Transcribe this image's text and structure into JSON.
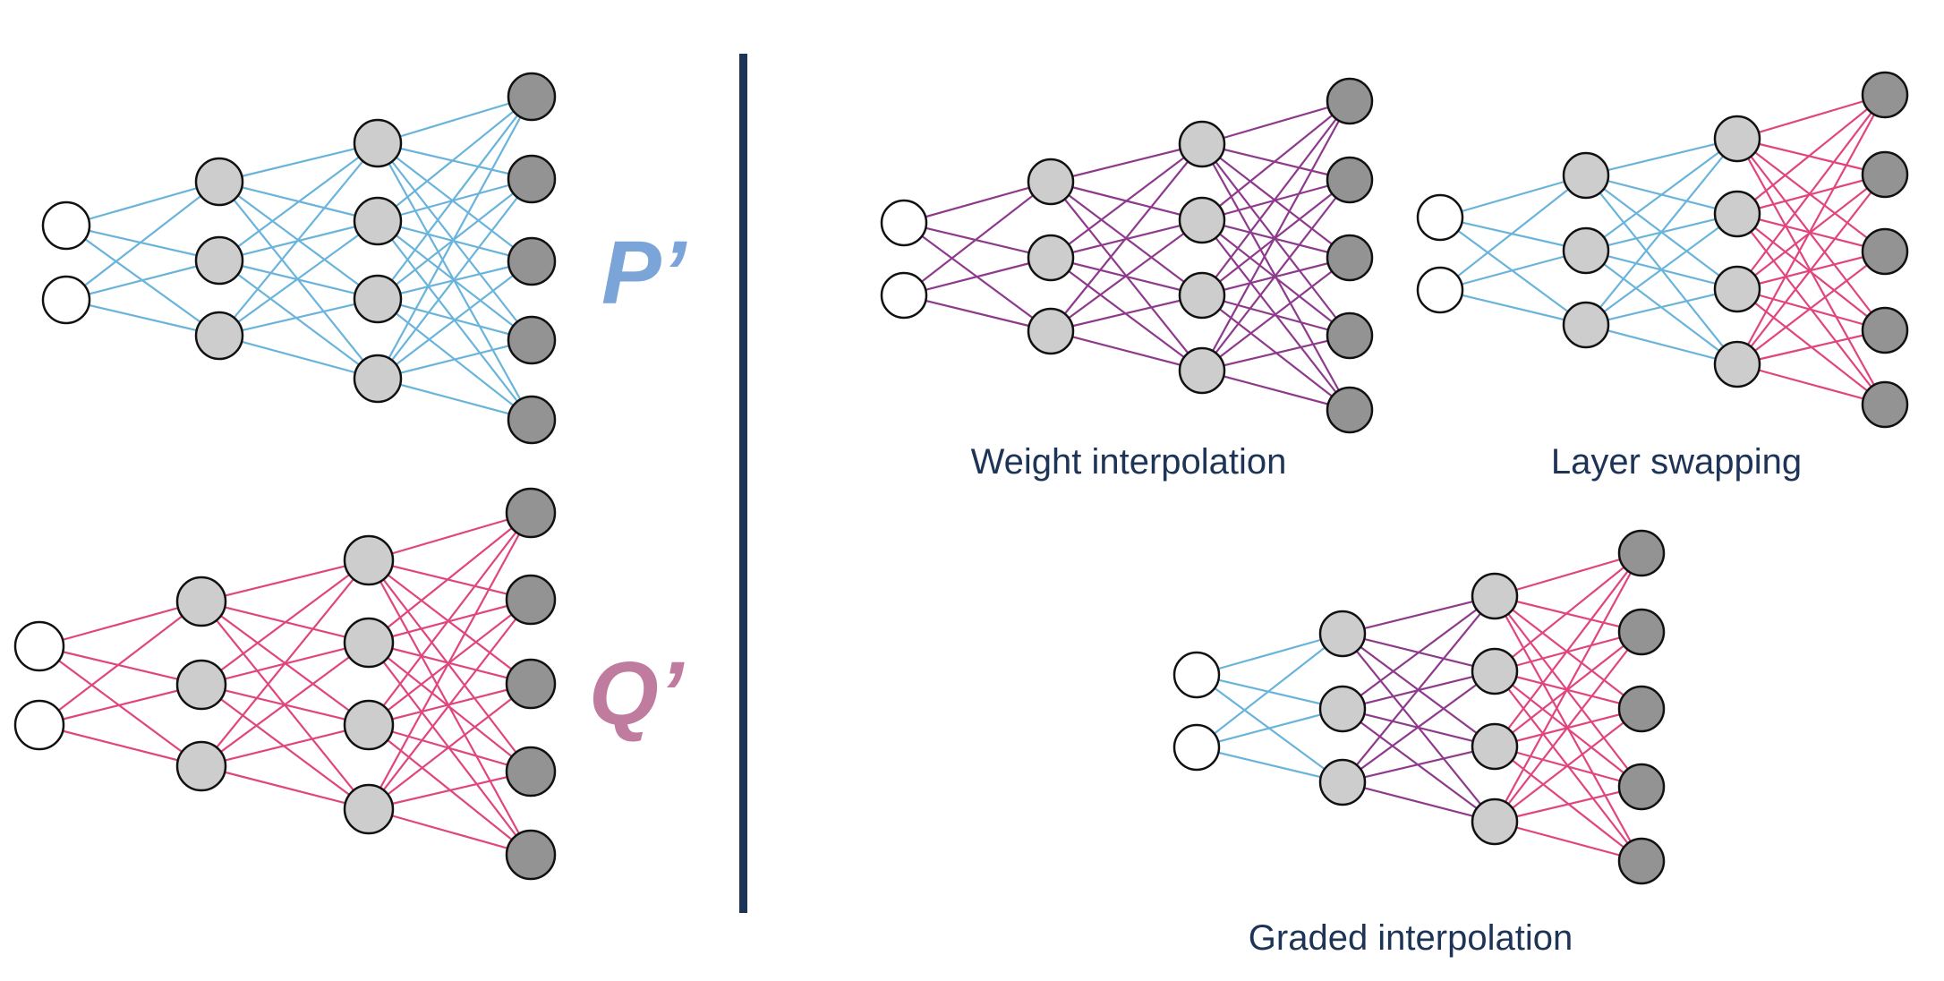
{
  "labels": {
    "p": "P’",
    "q": "Q’"
  },
  "captions": {
    "weight": "Weight interpolation",
    "layer": "Layer swapping",
    "graded": "Graded interpolation"
  },
  "colors": {
    "p_edges": "#6ab4dc",
    "q_edges": "#e0457e",
    "mixed_edges": "#8e3a8c",
    "p_label": "#7ba4d8",
    "q_label": "#c07c9f",
    "caption_text": "#1e3456",
    "divider": "#1e3456",
    "input_node_fill": "#ffffff",
    "hidden_node_fill": "#cdcdcd",
    "output_node_fill": "#939393",
    "node_stroke": "#111111"
  },
  "network": {
    "layer_sizes": [
      2,
      3,
      4,
      5
    ]
  },
  "panels": [
    {
      "id": "p-model",
      "layer_colors": [
        "p",
        "p",
        "p"
      ]
    },
    {
      "id": "q-model",
      "layer_colors": [
        "q",
        "q",
        "q"
      ]
    },
    {
      "id": "weight-interpolation",
      "layer_colors": [
        "mixed",
        "mixed",
        "mixed"
      ]
    },
    {
      "id": "layer-swapping",
      "layer_colors": [
        "p",
        "p",
        "q"
      ]
    },
    {
      "id": "graded-interpolation",
      "layer_colors": [
        "p",
        "mixed",
        "q"
      ]
    }
  ]
}
